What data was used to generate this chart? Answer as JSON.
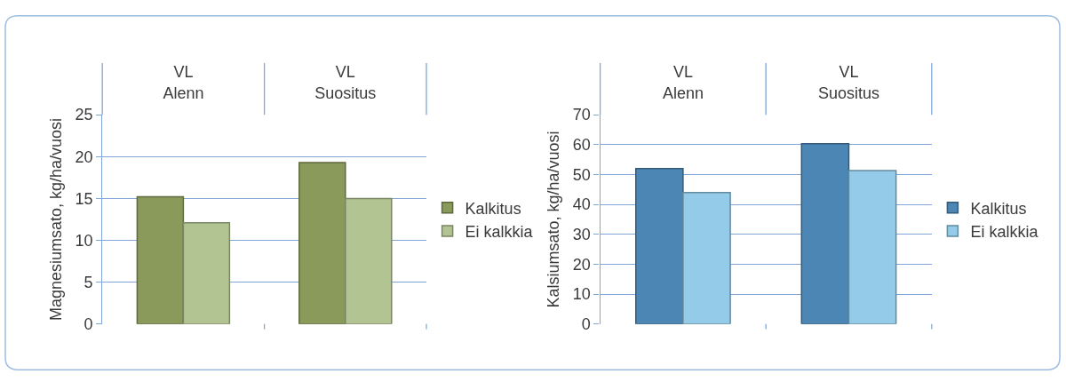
{
  "chart_data": [
    {
      "type": "bar",
      "categories": [
        "VL\nAlenn",
        "VL\nSuositus"
      ],
      "ylabel": "Magnesiumsato, kg/ha/vuosi",
      "series": [
        {
          "name": "Kalkitus",
          "color": "#8a9a5b",
          "values": [
            15.2,
            19.3
          ]
        },
        {
          "name": "Ei kalkkia",
          "color": "#b3c493",
          "values": [
            12.1,
            15.0
          ]
        }
      ],
      "ylim": [
        0,
        25
      ],
      "yticks": [
        0,
        5,
        10,
        15,
        20,
        25
      ],
      "grid": "y",
      "legend": "right"
    },
    {
      "type": "bar",
      "categories": [
        "VL\nAlenn",
        "VL\nSuositus"
      ],
      "ylabel": "Kalsiumsato, kg/ha/vuosi",
      "series": [
        {
          "name": "Kalkitus",
          "color": "#4b86b4",
          "values": [
            52,
            60.3
          ]
        },
        {
          "name": "Ei kalkkia",
          "color": "#93cbe8",
          "values": [
            44,
            51.3
          ]
        }
      ],
      "ylim": [
        0,
        70
      ],
      "yticks": [
        0,
        10,
        20,
        30,
        40,
        50,
        60,
        70
      ],
      "grid": "y",
      "legend": "right"
    }
  ]
}
